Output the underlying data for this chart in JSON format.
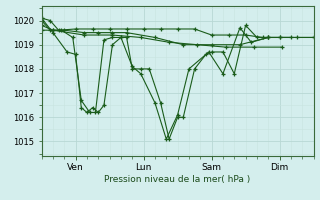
{
  "background_color": "#d4eeed",
  "grid_color_major": "#b8d8d4",
  "grid_color_minor": "#c8e4e0",
  "line_color": "#1a5c1a",
  "ylabel_text": "Pression niveau de la mer( hPa )",
  "ylim": [
    1014.4,
    1020.6
  ],
  "yticks": [
    1015,
    1016,
    1017,
    1018,
    1019,
    1020
  ],
  "xtick_labels": [
    "Ven",
    "Lun",
    "Sam",
    "Dim"
  ],
  "xtick_positions": [
    24,
    72,
    120,
    168
  ],
  "xlim": [
    0,
    192
  ],
  "series": [
    [
      0,
      1020.1,
      6,
      1020.0,
      12,
      1019.6,
      24,
      1019.65,
      36,
      1019.65,
      48,
      1019.65,
      60,
      1019.65,
      72,
      1019.65,
      84,
      1019.65,
      96,
      1019.65,
      108,
      1019.65,
      120,
      1019.4,
      132,
      1019.4,
      144,
      1019.4,
      156,
      1019.3,
      168,
      1019.3,
      180,
      1019.3,
      192,
      1019.3
    ],
    [
      0,
      1020.1,
      8,
      1019.5,
      18,
      1018.7,
      24,
      1018.6,
      28,
      1016.4,
      32,
      1016.2,
      36,
      1016.4,
      40,
      1016.2,
      44,
      1016.5,
      50,
      1019.0,
      56,
      1019.3,
      60,
      1019.3,
      64,
      1018.0,
      70,
      1018.0,
      76,
      1018.0,
      84,
      1016.6,
      90,
      1015.1,
      96,
      1016.0,
      100,
      1016.0,
      108,
      1018.0,
      116,
      1018.6,
      120,
      1018.7,
      128,
      1018.7,
      136,
      1017.8,
      144,
      1019.8,
      152,
      1019.3,
      160,
      1019.3,
      168,
      1019.3,
      176,
      1019.3
    ],
    [
      0,
      1020.0,
      6,
      1019.6,
      14,
      1019.6,
      22,
      1019.3,
      28,
      1016.7,
      34,
      1016.2,
      38,
      1016.2,
      44,
      1019.2,
      50,
      1019.3,
      56,
      1019.3,
      64,
      1018.1,
      70,
      1017.8,
      80,
      1016.6,
      88,
      1015.1,
      96,
      1016.1,
      104,
      1018.0,
      118,
      1018.7,
      128,
      1017.8,
      140,
      1019.7,
      148,
      1019.1,
      160,
      1019.3
    ],
    [
      0,
      1019.8,
      8,
      1019.6,
      16,
      1019.6,
      30,
      1019.5,
      40,
      1019.5,
      50,
      1019.5,
      60,
      1019.5,
      80,
      1019.3,
      100,
      1019.0,
      120,
      1019.0,
      140,
      1019.0,
      160,
      1019.3,
      192,
      1019.3
    ],
    [
      0,
      1019.6,
      8,
      1019.6,
      30,
      1019.4,
      50,
      1019.4,
      70,
      1019.3,
      90,
      1019.1,
      110,
      1019.0,
      130,
      1018.9,
      150,
      1018.9,
      170,
      1018.9
    ]
  ]
}
